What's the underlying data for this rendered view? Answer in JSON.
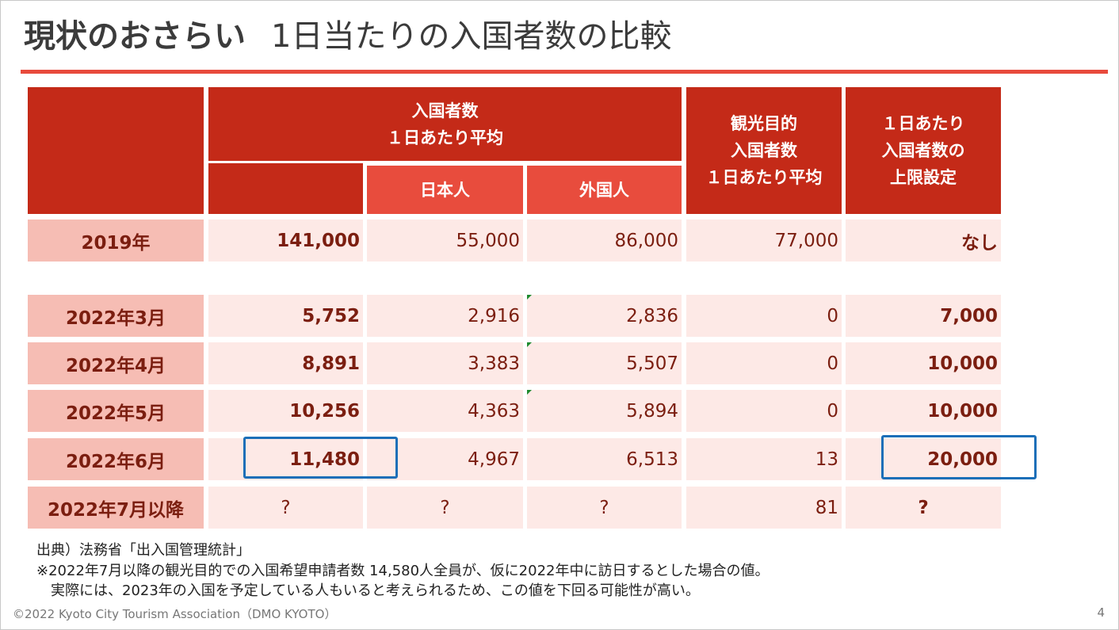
{
  "slide": {
    "title_main": "現状のおさらい",
    "title_sub": "1日当たりの入国者数の比較",
    "footer": "©2022 Kyoto City Tourism Association（DMO KYOTO）",
    "page_number": "4",
    "accent_color": "#e84a3c",
    "highlight_color": "#1c6fb8"
  },
  "table": {
    "headers": {
      "arrivals": "入国者数\n１日あたり平均",
      "japanese": "日本人",
      "foreign": "外国人",
      "tourism": "観光目的\n入国者数\n１日あたり平均",
      "cap": "１日あたり\n入国者数の\n上限設定"
    },
    "rows": [
      {
        "label": "2019年",
        "total": "141,000",
        "japanese": "55,000",
        "foreign": "86,000",
        "tourism": "77,000",
        "cap": "なし"
      },
      {
        "label": "2022年3月",
        "total": "5,752",
        "japanese": "2,916",
        "foreign": "2,836",
        "tourism": "0",
        "cap": "7,000"
      },
      {
        "label": "2022年4月",
        "total": "8,891",
        "japanese": "3,383",
        "foreign": "5,507",
        "tourism": "0",
        "cap": "10,000"
      },
      {
        "label": "2022年5月",
        "total": "10,256",
        "japanese": "4,363",
        "foreign": "5,894",
        "tourism": "0",
        "cap": "10,000"
      },
      {
        "label": "2022年6月",
        "total": "11,480",
        "japanese": "4,967",
        "foreign": "6,513",
        "tourism": "13",
        "cap": "20,000"
      },
      {
        "label": "2022年7月以降",
        "total": "?",
        "japanese": "?",
        "foreign": "?",
        "tourism": "81",
        "cap": "?"
      }
    ]
  },
  "notes": [
    "出典）法務省「出入国管理統計」",
    "※2022年7月以降の観光目的での入国希望申請者数 14,580人全員が、仮に2022年中に訪日するとした場合の値。",
    "　実際には、2023年の入国を予定している人もいると考えられるため、この値を下回る可能性が高い。"
  ]
}
